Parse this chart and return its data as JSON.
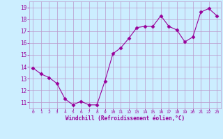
{
  "x": [
    0,
    1,
    2,
    3,
    4,
    5,
    6,
    7,
    8,
    9,
    10,
    11,
    12,
    13,
    14,
    15,
    16,
    17,
    18,
    19,
    20,
    21,
    22,
    23
  ],
  "y": [
    13.9,
    13.4,
    13.1,
    12.6,
    11.3,
    10.8,
    11.1,
    10.8,
    10.8,
    12.8,
    15.1,
    15.6,
    16.4,
    17.3,
    17.4,
    17.4,
    18.3,
    17.4,
    17.1,
    16.1,
    16.5,
    18.6,
    18.9,
    18.3
  ],
  "line_color": "#990099",
  "marker": "D",
  "marker_size": 2.5,
  "bg_color": "#cceeff",
  "grid_color": "#bb99cc",
  "tick_color": "#990099",
  "label_color": "#990099",
  "xlabel": "Windchill (Refroidissement éolien,°C)",
  "ylim": [
    10.5,
    19.5
  ],
  "xlim": [
    -0.5,
    23.5
  ],
  "yticks": [
    11,
    12,
    13,
    14,
    15,
    16,
    17,
    18,
    19
  ],
  "xticks": [
    0,
    1,
    2,
    3,
    4,
    5,
    6,
    7,
    8,
    9,
    10,
    11,
    12,
    13,
    14,
    15,
    16,
    17,
    18,
    19,
    20,
    21,
    22,
    23
  ]
}
